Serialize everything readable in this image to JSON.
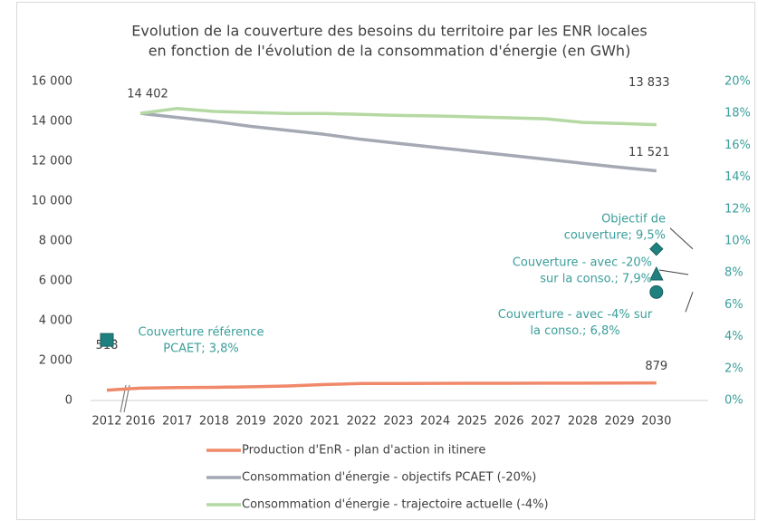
{
  "chart_data": {
    "type": "line",
    "title": [
      "Evolution de la couverture des besoins du territoire par les ENR locales",
      "en fonction de l'évolution de la consommation d'énergie (en GWh)"
    ],
    "categories": [
      "2012",
      "2016",
      "2017",
      "2018",
      "2019",
      "2020",
      "2021",
      "2022",
      "2023",
      "2024",
      "2025",
      "2026",
      "2027",
      "2028",
      "2029",
      "2030"
    ],
    "ylim": [
      0,
      16000
    ],
    "yticks": [
      {
        "value": 0,
        "label": "0"
      },
      {
        "value": 2000,
        "label": "2 000"
      },
      {
        "value": 4000,
        "label": "4 000"
      },
      {
        "value": 6000,
        "label": "6 000"
      },
      {
        "value": 8000,
        "label": "8 000"
      },
      {
        "value": 10000,
        "label": "10 000"
      },
      {
        "value": 12000,
        "label": "12 000"
      },
      {
        "value": 14000,
        "label": "14 000"
      },
      {
        "value": 16000,
        "label": "16 000"
      }
    ],
    "y2lim": [
      0,
      20
    ],
    "y2ticks": [
      {
        "value": 0,
        "label": "0%"
      },
      {
        "value": 2,
        "label": "2%"
      },
      {
        "value": 4,
        "label": "4%"
      },
      {
        "value": 6,
        "label": "6%"
      },
      {
        "value": 8,
        "label": "8%"
      },
      {
        "value": 10,
        "label": "10%"
      },
      {
        "value": 12,
        "label": "12%"
      },
      {
        "value": 14,
        "label": "14%"
      },
      {
        "value": 16,
        "label": "16%"
      },
      {
        "value": 18,
        "label": "18%"
      },
      {
        "value": 20,
        "label": "20%"
      }
    ],
    "series": [
      {
        "name": "Production d'EnR - plan d'action in itinere",
        "color": "#f0896a",
        "values": [
          518,
          620,
          650,
          660,
          690,
          730,
          800,
          850,
          855,
          860,
          862,
          865,
          868,
          870,
          875,
          879
        ],
        "value_labels": [
          "518",
          null,
          null,
          null,
          null,
          null,
          null,
          null,
          null,
          null,
          null,
          null,
          null,
          null,
          null,
          "879"
        ]
      },
      {
        "name": "Consommation d'énergie - objectifs PCAET (-20%)",
        "color": "#a4a9b4",
        "values": [
          null,
          14402,
          14200,
          14000,
          13750,
          13550,
          13350,
          13100,
          12900,
          12700,
          12500,
          12300,
          12100,
          11900,
          11700,
          11521
        ],
        "value_labels": [
          null,
          "14 402",
          null,
          null,
          null,
          null,
          null,
          null,
          null,
          null,
          null,
          null,
          null,
          null,
          null,
          "11 521"
        ]
      },
      {
        "name": "Consommation  d'énergie - trajectoire actuelle (-4%)",
        "color": "#b5d9a3",
        "values": [
          null,
          14402,
          14650,
          14500,
          14450,
          14400,
          14400,
          14350,
          14300,
          14270,
          14230,
          14180,
          14130,
          13950,
          13900,
          13833
        ],
        "value_labels": [
          null,
          null,
          null,
          null,
          null,
          null,
          null,
          null,
          null,
          null,
          null,
          null,
          null,
          null,
          null,
          "13 833"
        ]
      },
      {
        "axis": "y2",
        "marker": "square",
        "color": "#1f8080",
        "values": [
          3.8,
          null,
          null,
          null,
          null,
          null,
          null,
          null,
          null,
          null,
          null,
          null,
          null,
          null,
          null,
          null
        ],
        "value_labels": [
          [
            "Couverture référence",
            "PCAET; 3,8%"
          ],
          null,
          null,
          null,
          null,
          null,
          null,
          null,
          null,
          null,
          null,
          null,
          null,
          null,
          null,
          null
        ]
      },
      {
        "axis": "y2",
        "marker": "diamond",
        "color": "#1f8080",
        "values": [
          null,
          null,
          null,
          null,
          null,
          null,
          null,
          null,
          null,
          null,
          null,
          null,
          null,
          null,
          null,
          9.5
        ],
        "value_labels": [
          null,
          null,
          null,
          null,
          null,
          null,
          null,
          null,
          null,
          null,
          null,
          null,
          null,
          null,
          null,
          [
            "Objectif de",
            "couverture; 9,5%"
          ]
        ]
      },
      {
        "axis": "y2",
        "marker": "triangle",
        "color": "#1f8080",
        "values": [
          null,
          null,
          null,
          null,
          null,
          null,
          null,
          null,
          null,
          null,
          null,
          null,
          null,
          null,
          null,
          7.9
        ],
        "value_labels": [
          null,
          null,
          null,
          null,
          null,
          null,
          null,
          null,
          null,
          null,
          null,
          null,
          null,
          null,
          null,
          [
            "Couverture - avec -20%",
            "sur la conso.; 7,9%"
          ]
        ]
      },
      {
        "axis": "y2",
        "marker": "circle",
        "color": "#1f8080",
        "values": [
          null,
          null,
          null,
          null,
          null,
          null,
          null,
          null,
          null,
          null,
          null,
          null,
          null,
          null,
          null,
          6.8
        ],
        "value_labels": [
          null,
          null,
          null,
          null,
          null,
          null,
          null,
          null,
          null,
          null,
          null,
          null,
          null,
          null,
          null,
          [
            "Couverture - avec -4% sur",
            "la conso.; 6,8%"
          ]
        ]
      }
    ]
  }
}
